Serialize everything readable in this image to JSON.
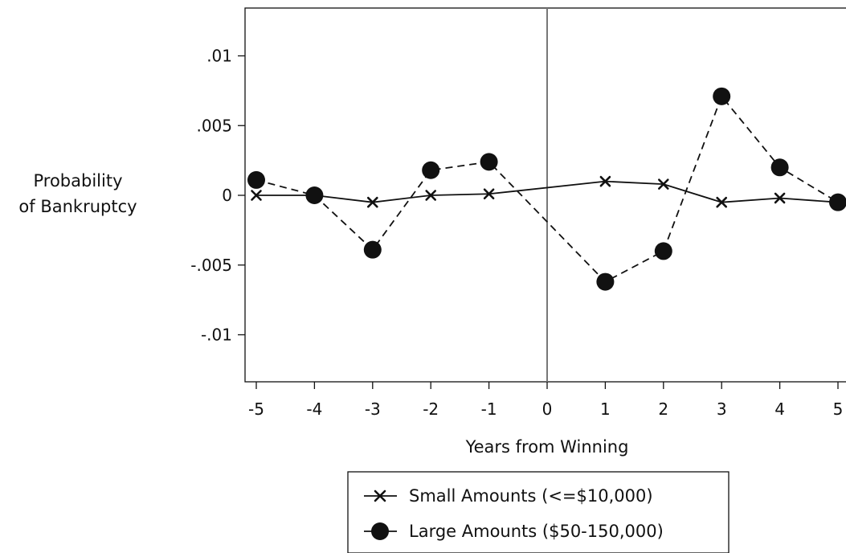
{
  "chart_data": {
    "type": "line",
    "xlabel": "Years from Winning",
    "ylabel_lines": [
      "Probability",
      "of Bankruptcy"
    ],
    "x": [
      -5,
      -4,
      -3,
      -2,
      -1,
      0,
      1,
      2,
      3,
      4,
      5
    ],
    "x_ticks": [
      "-5",
      "-4",
      "-3",
      "-2",
      "-1",
      "0",
      "1",
      "2",
      "3",
      "4",
      "5"
    ],
    "y_ticks": [
      ".01",
      ".005",
      "0",
      "-.005",
      "-.01"
    ],
    "y_tick_values": [
      0.01,
      0.005,
      0,
      -0.005,
      -0.01
    ],
    "xlim": [
      -5,
      5
    ],
    "ylim": [
      -0.0133,
      0.0135
    ],
    "vertical_reference_line_x": 0,
    "grid": false,
    "legend_position": "bottom",
    "series": [
      {
        "name": "Small Amounts (<=$10,000)",
        "marker": "x",
        "line_style": "solid",
        "points": [
          [
            -5,
            0.0
          ],
          [
            -4,
            0.0
          ],
          [
            -3,
            -0.0005
          ],
          [
            -2,
            0.0
          ],
          [
            -1,
            0.0001
          ],
          [
            1,
            0.001
          ],
          [
            2,
            0.0008
          ],
          [
            3,
            -0.0005
          ],
          [
            4,
            -0.0002
          ],
          [
            5,
            -0.0005
          ]
        ]
      },
      {
        "name": "Large Amounts ($50-150,000)",
        "marker": "circle",
        "line_style": "dashed",
        "points": [
          [
            -5,
            0.0011
          ],
          [
            -4,
            0.0
          ],
          [
            -3,
            -0.0039
          ],
          [
            -2,
            0.0018
          ],
          [
            -1,
            0.0024
          ],
          [
            1,
            -0.0062
          ],
          [
            2,
            -0.004
          ],
          [
            3,
            0.0071
          ],
          [
            4,
            0.002
          ],
          [
            5,
            -0.0005
          ]
        ]
      }
    ]
  }
}
